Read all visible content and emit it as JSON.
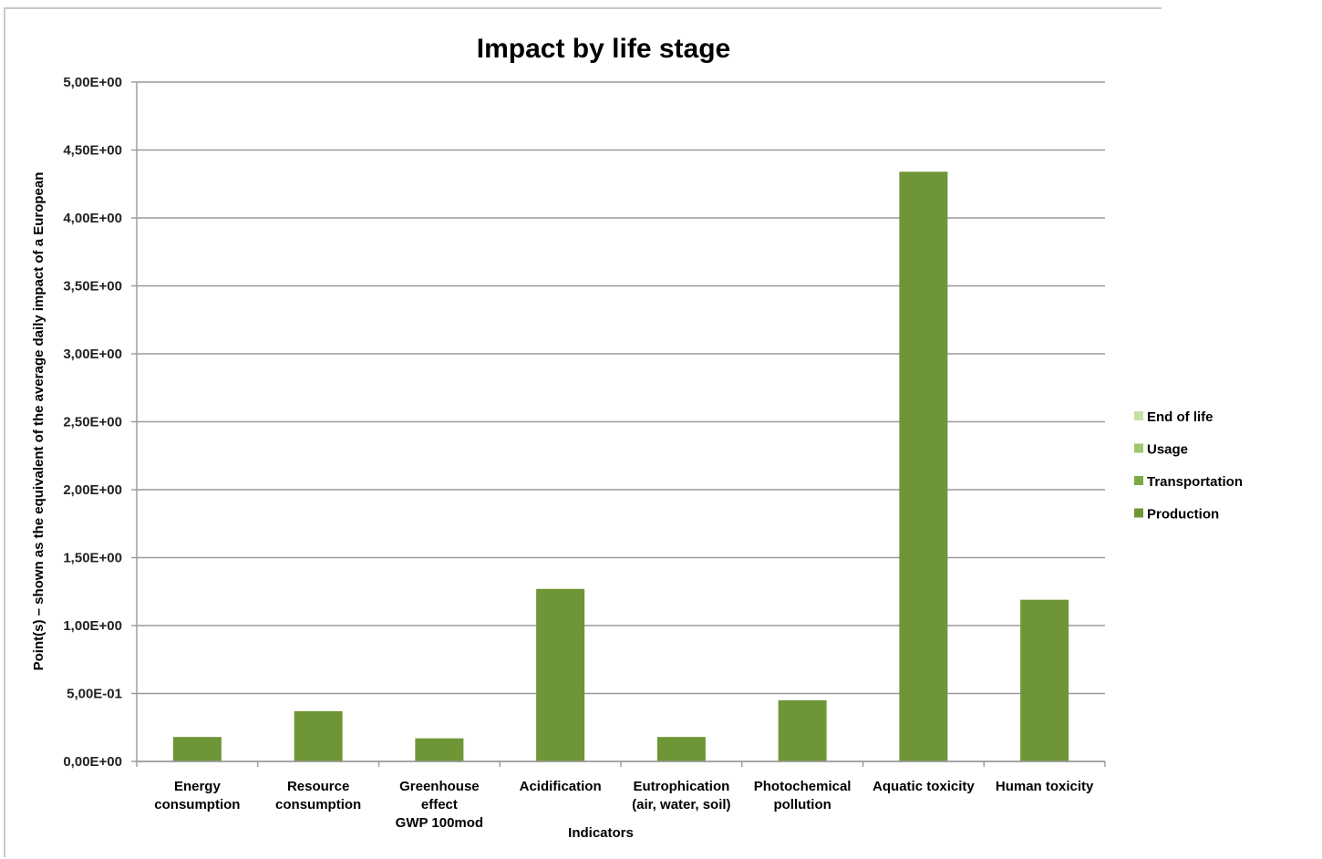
{
  "chart_data": {
    "type": "bar",
    "title": "Impact by life stage",
    "xlabel": "Indicators",
    "ylabel": "Point(s) – shown as the equivalent of the average daily impact of a European",
    "ylim": [
      0,
      5
    ],
    "yticks": [
      {
        "value": 0,
        "label": "0,00E+00"
      },
      {
        "value": 0.5,
        "label": "5,00E-01"
      },
      {
        "value": 1.0,
        "label": "1,00E+00"
      },
      {
        "value": 1.5,
        "label": "1,50E+00"
      },
      {
        "value": 2.0,
        "label": "2,00E+00"
      },
      {
        "value": 2.5,
        "label": "2,50E+00"
      },
      {
        "value": 3.0,
        "label": "3,00E+00"
      },
      {
        "value": 3.5,
        "label": "3,50E+00"
      },
      {
        "value": 4.0,
        "label": "4,00E+00"
      },
      {
        "value": 4.5,
        "label": "4,50E+00"
      },
      {
        "value": 5.0,
        "label": "5,00E+00"
      }
    ],
    "categories": [
      [
        "Energy",
        "consumption"
      ],
      [
        "Resource",
        "consumption"
      ],
      [
        "Greenhouse",
        "effect",
        "GWP 100mod"
      ],
      [
        "Acidification"
      ],
      [
        "Eutrophication",
        "(air, water, soil)"
      ],
      [
        "Photochemical",
        "pollution"
      ],
      [
        "Aquatic toxicity"
      ],
      [
        "Human toxicity"
      ]
    ],
    "series": [
      {
        "name": "Production",
        "color": "#6f9636",
        "values": [
          0.18,
          0.37,
          0.17,
          1.27,
          0.18,
          0.45,
          4.34,
          1.19
        ]
      },
      {
        "name": "Transportation",
        "color": "#7bab45",
        "values": [
          0,
          0,
          0,
          0,
          0,
          0,
          0,
          0
        ]
      },
      {
        "name": "Usage",
        "color": "#9cc76c",
        "values": [
          0,
          0,
          0,
          0,
          0,
          0,
          0,
          0
        ]
      },
      {
        "name": "End of life",
        "color": "#c4e0a8",
        "values": [
          0,
          0,
          0,
          0,
          0,
          0,
          0,
          0
        ]
      }
    ],
    "legend": {
      "position": "right",
      "order": [
        "End of life",
        "Usage",
        "Transportation",
        "Production"
      ]
    },
    "grid": true
  }
}
